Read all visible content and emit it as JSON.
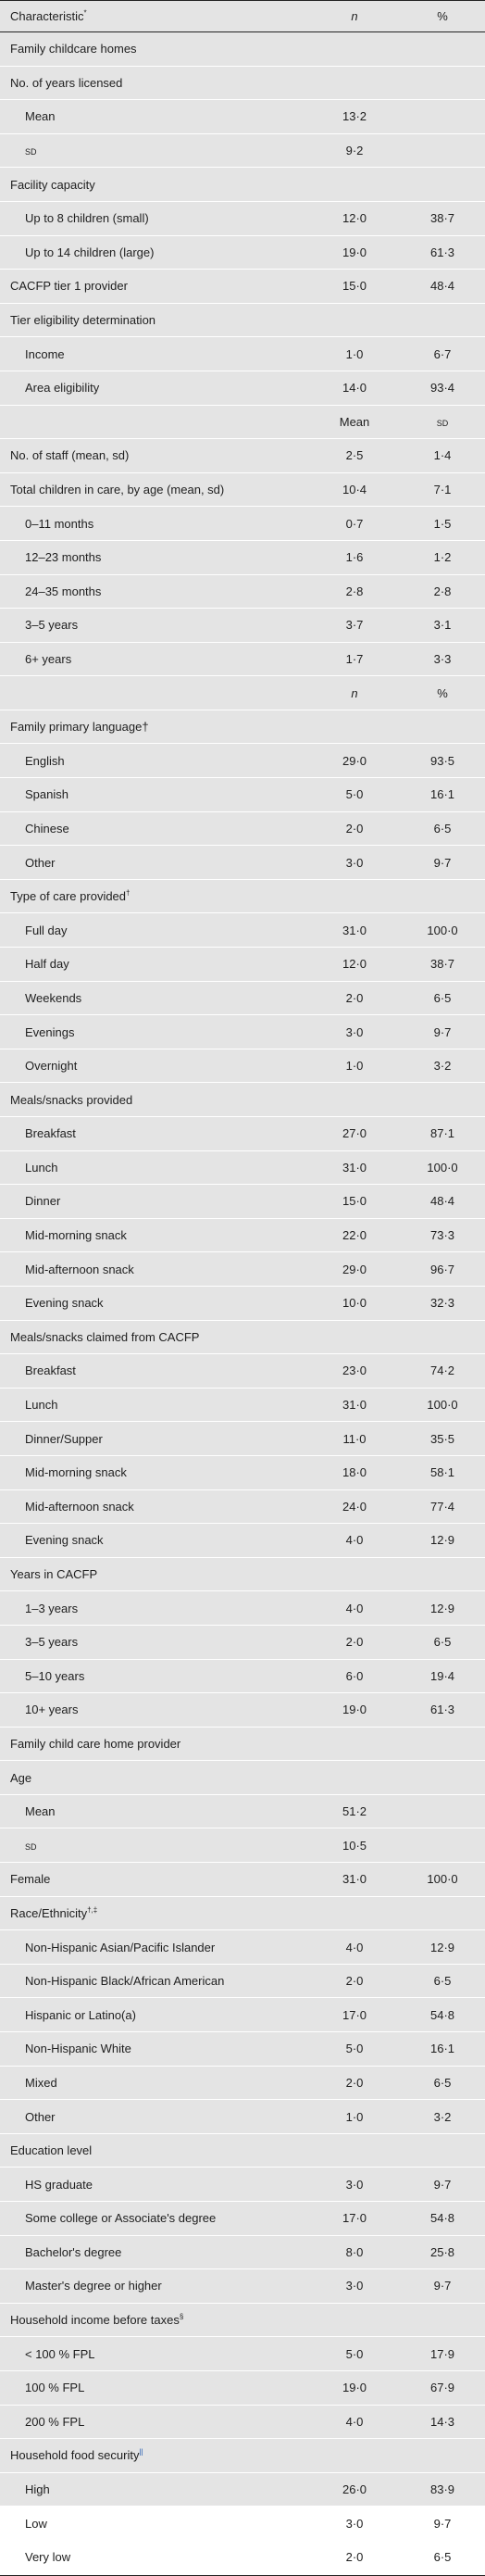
{
  "header": {
    "characteristic": "Characteristic",
    "characteristic_sup": "*",
    "n": "n",
    "pct": "%"
  },
  "rows": [
    {
      "label": "Family childcare homes",
      "c2": "",
      "c3": "",
      "indent": false,
      "shade": true
    },
    {
      "label": "No. of years licensed",
      "c2": "",
      "c3": "",
      "indent": false,
      "shade": true
    },
    {
      "label": "Mean",
      "c2": "13·2",
      "c3": "",
      "indent": true,
      "shade": true
    },
    {
      "label": "sd",
      "c2": "9·2",
      "c3": "",
      "indent": true,
      "shade": true,
      "smallcaps": true
    },
    {
      "label": "Facility capacity",
      "c2": "",
      "c3": "",
      "indent": false,
      "shade": true
    },
    {
      "label": "Up to 8 children (small)",
      "c2": "12·0",
      "c3": "38·7",
      "indent": true,
      "shade": true
    },
    {
      "label": "Up to 14 children (large)",
      "c2": "19·0",
      "c3": "61·3",
      "indent": true,
      "shade": true
    },
    {
      "label": "CACFP tier 1 provider",
      "c2": "15·0",
      "c3": "48·4",
      "indent": false,
      "shade": true
    },
    {
      "label": "Tier eligibility determination",
      "c2": "",
      "c3": "",
      "indent": false,
      "shade": true
    },
    {
      "label": "Income",
      "c2": "1·0",
      "c3": "6·7",
      "indent": true,
      "shade": true
    },
    {
      "label": "Area eligibility",
      "c2": "14·0",
      "c3": "93·4",
      "indent": true,
      "shade": true
    },
    {
      "label": "",
      "c2": "Mean",
      "c3": "sd",
      "indent": false,
      "shade": true,
      "c3_smallcaps": true
    },
    {
      "label": "No. of staff (mean, sd)",
      "c2": "2·5",
      "c3": "1·4",
      "indent": false,
      "shade": true
    },
    {
      "label": "Total children in care, by age (mean, sd)",
      "c2": "10·4",
      "c3": "7·1",
      "indent": false,
      "shade": true
    },
    {
      "label": "0–11 months",
      "c2": "0·7",
      "c3": "1·5",
      "indent": true,
      "shade": true
    },
    {
      "label": "12–23 months",
      "c2": "1·6",
      "c3": "1·2",
      "indent": true,
      "shade": true
    },
    {
      "label": "24–35 months",
      "c2": "2·8",
      "c3": "2·8",
      "indent": true,
      "shade": true
    },
    {
      "label": "3–5 years",
      "c2": "3·7",
      "c3": "3·1",
      "indent": true,
      "shade": true
    },
    {
      "label": "6+ years",
      "c2": "1·7",
      "c3": "3·3",
      "indent": true,
      "shade": true
    },
    {
      "label": "",
      "c2": "n",
      "c3": "%",
      "indent": false,
      "shade": true,
      "c2_italic": true
    },
    {
      "label": "Family primary language†",
      "c2": "",
      "c3": "",
      "indent": false,
      "shade": true
    },
    {
      "label": "English",
      "c2": "29·0",
      "c3": "93·5",
      "indent": true,
      "shade": true
    },
    {
      "label": "Spanish",
      "c2": "5·0",
      "c3": "16·1",
      "indent": true,
      "shade": true
    },
    {
      "label": "Chinese",
      "c2": "2·0",
      "c3": "6·5",
      "indent": true,
      "shade": true
    },
    {
      "label": "Other",
      "c2": "3·0",
      "c3": "9·7",
      "indent": true,
      "shade": true
    },
    {
      "label": "Type of care provided",
      "label_sup": "†",
      "c2": "",
      "c3": "",
      "indent": false,
      "shade": true
    },
    {
      "label": "Full day",
      "c2": "31·0",
      "c3": "100·0",
      "indent": true,
      "shade": true
    },
    {
      "label": "Half day",
      "c2": "12·0",
      "c3": "38·7",
      "indent": true,
      "shade": true
    },
    {
      "label": "Weekends",
      "c2": "2·0",
      "c3": "6·5",
      "indent": true,
      "shade": true
    },
    {
      "label": "Evenings",
      "c2": "3·0",
      "c3": "9·7",
      "indent": true,
      "shade": true
    },
    {
      "label": "Overnight",
      "c2": "1·0",
      "c3": "3·2",
      "indent": true,
      "shade": true
    },
    {
      "label": "Meals/snacks provided",
      "c2": "",
      "c3": "",
      "indent": false,
      "shade": true
    },
    {
      "label": "Breakfast",
      "c2": "27·0",
      "c3": "87·1",
      "indent": true,
      "shade": true
    },
    {
      "label": "Lunch",
      "c2": "31·0",
      "c3": "100·0",
      "indent": true,
      "shade": true
    },
    {
      "label": "Dinner",
      "c2": "15·0",
      "c3": "48·4",
      "indent": true,
      "shade": true
    },
    {
      "label": "Mid-morning snack",
      "c2": "22·0",
      "c3": "73·3",
      "indent": true,
      "shade": true
    },
    {
      "label": "Mid-afternoon snack",
      "c2": "29·0",
      "c3": "96·7",
      "indent": true,
      "shade": true
    },
    {
      "label": "Evening snack",
      "c2": "10·0",
      "c3": "32·3",
      "indent": true,
      "shade": true
    },
    {
      "label": "Meals/snacks claimed from CACFP",
      "c2": "",
      "c3": "",
      "indent": false,
      "shade": true
    },
    {
      "label": "Breakfast",
      "c2": "23·0",
      "c3": "74·2",
      "indent": true,
      "shade": true
    },
    {
      "label": "Lunch",
      "c2": "31·0",
      "c3": "100·0",
      "indent": true,
      "shade": true
    },
    {
      "label": "Dinner/Supper",
      "c2": "11·0",
      "c3": "35·5",
      "indent": true,
      "shade": true
    },
    {
      "label": "Mid-morning snack",
      "c2": "18·0",
      "c3": "58·1",
      "indent": true,
      "shade": true
    },
    {
      "label": "Mid-afternoon snack",
      "c2": "24·0",
      "c3": "77·4",
      "indent": true,
      "shade": true
    },
    {
      "label": "Evening snack",
      "c2": "4·0",
      "c3": "12·9",
      "indent": true,
      "shade": true
    },
    {
      "label": "Years in CACFP",
      "c2": "",
      "c3": "",
      "indent": false,
      "shade": true
    },
    {
      "label": "1–3 years",
      "c2": "4·0",
      "c3": "12·9",
      "indent": true,
      "shade": true
    },
    {
      "label": "3–5 years",
      "c2": "2·0",
      "c3": "6·5",
      "indent": true,
      "shade": true
    },
    {
      "label": "5–10 years",
      "c2": "6·0",
      "c3": "19·4",
      "indent": true,
      "shade": true
    },
    {
      "label": "10+ years",
      "c2": "19·0",
      "c3": "61·3",
      "indent": true,
      "shade": true
    },
    {
      "label": "Family child care home provider",
      "c2": "",
      "c3": "",
      "indent": false,
      "shade": true
    },
    {
      "label": "Age",
      "c2": "",
      "c3": "",
      "indent": false,
      "shade": true
    },
    {
      "label": "Mean",
      "c2": "51·2",
      "c3": "",
      "indent": true,
      "shade": true
    },
    {
      "label": "sd",
      "c2": "10·5",
      "c3": "",
      "indent": true,
      "shade": true,
      "smallcaps": true
    },
    {
      "label": "Female",
      "c2": "31·0",
      "c3": "100·0",
      "indent": false,
      "shade": true
    },
    {
      "label": "Race/Ethnicity",
      "label_sup": "†,‡",
      "c2": "",
      "c3": "",
      "indent": false,
      "shade": true
    },
    {
      "label": "Non-Hispanic Asian/Pacific Islander",
      "c2": "4·0",
      "c3": "12·9",
      "indent": true,
      "shade": true
    },
    {
      "label": "Non-Hispanic Black/African American",
      "c2": "2·0",
      "c3": "6·5",
      "indent": true,
      "shade": true
    },
    {
      "label": "Hispanic or Latino(a)",
      "c2": "17·0",
      "c3": "54·8",
      "indent": true,
      "shade": true
    },
    {
      "label": "Non-Hispanic White",
      "c2": "5·0",
      "c3": "16·1",
      "indent": true,
      "shade": true
    },
    {
      "label": "Mixed",
      "c2": "2·0",
      "c3": "6·5",
      "indent": true,
      "shade": true
    },
    {
      "label": "Other",
      "c2": "1·0",
      "c3": "3·2",
      "indent": true,
      "shade": true
    },
    {
      "label": "Education level",
      "c2": "",
      "c3": "",
      "indent": false,
      "shade": true
    },
    {
      "label": "HS graduate",
      "c2": "3·0",
      "c3": "9·7",
      "indent": true,
      "shade": true
    },
    {
      "label": "Some college or Associate's degree",
      "c2": "17·0",
      "c3": "54·8",
      "indent": true,
      "shade": true
    },
    {
      "label": "Bachelor's degree",
      "c2": "8·0",
      "c3": "25·8",
      "indent": true,
      "shade": true
    },
    {
      "label": "Master's degree or higher",
      "c2": "3·0",
      "c3": "9·7",
      "indent": true,
      "shade": true
    },
    {
      "label": "Household income before taxes",
      "label_sup": "§",
      "c2": "",
      "c3": "",
      "indent": false,
      "shade": true
    },
    {
      "label": "< 100 % FPL",
      "c2": "5·0",
      "c3": "17·9",
      "indent": true,
      "shade": true
    },
    {
      "label": "100 % FPL",
      "c2": "19·0",
      "c3": "67·9",
      "indent": true,
      "shade": true
    },
    {
      "label": "200 % FPL",
      "c2": "4·0",
      "c3": "14·3",
      "indent": true,
      "shade": true
    },
    {
      "label": "Household food security",
      "label_sup": "||",
      "label_sup_blue": true,
      "c2": "",
      "c3": "",
      "indent": false,
      "shade": true
    },
    {
      "label": "High",
      "c2": "26·0",
      "c3": "83·9",
      "indent": true,
      "shade": true
    },
    {
      "label": "Low",
      "c2": "3·0",
      "c3": "9·7",
      "indent": true,
      "shade": false
    },
    {
      "label": "Very low",
      "c2": "2·0",
      "c3": "6·5",
      "indent": true,
      "shade": false
    }
  ]
}
